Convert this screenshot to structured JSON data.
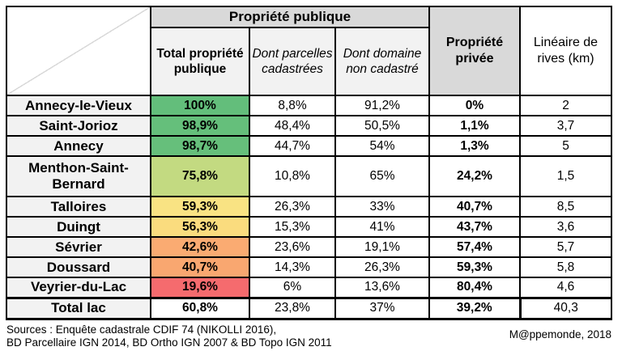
{
  "chart_data": {
    "type": "table",
    "header": {
      "group_public": "Propriété publique",
      "col_total_public": "Total propriété publique",
      "col_parcelles": "Dont parcelles cadastrées",
      "col_domaine": "Dont domaine non cadastré",
      "col_privee": "Propriété privée",
      "col_lineaire": "Linéaire de rives (km)"
    },
    "rows": [
      {
        "label": "Annecy-le-Vieux",
        "total_public": "100%",
        "parcelles": "8,8%",
        "domaine": "91,2%",
        "privee": "0%",
        "lineaire": "2",
        "cell_color": "#63BE7B"
      },
      {
        "label": "Saint-Jorioz",
        "total_public": "98,9%",
        "parcelles": "48,4%",
        "domaine": "50,5%",
        "privee": "1,1%",
        "lineaire": "3,7",
        "cell_color": "#65BF7B"
      },
      {
        "label": "Annecy",
        "total_public": "98,7%",
        "parcelles": "44,7%",
        "domaine": "54%",
        "privee": "1,3%",
        "lineaire": "5",
        "cell_color": "#66BF7B"
      },
      {
        "label": "Menthon-Saint-Bernard",
        "total_public": "75,8%",
        "parcelles": "10,8%",
        "domaine": "65%",
        "privee": "24,2%",
        "lineaire": "1,5",
        "cell_color": "#C3DA81"
      },
      {
        "label": "Talloires",
        "total_public": "59,3%",
        "parcelles": "26,3%",
        "domaine": "33%",
        "privee": "40,7%",
        "lineaire": "8,5",
        "cell_color": "#F9E383"
      },
      {
        "label": "Duingt",
        "total_public": "56,3%",
        "parcelles": "15,3%",
        "domaine": "41%",
        "privee": "43,7%",
        "lineaire": "3,6",
        "cell_color": "#FADC7E"
      },
      {
        "label": "Sévrier",
        "total_public": "42,6%",
        "parcelles": "23,6%",
        "domaine": "19,1%",
        "privee": "57,4%",
        "lineaire": "5,7",
        "cell_color": "#FAAB72"
      },
      {
        "label": "Doussard",
        "total_public": "40,7%",
        "parcelles": "14,3%",
        "domaine": "26,3%",
        "privee": "59,3%",
        "lineaire": "5,8",
        "cell_color": "#F9A770"
      },
      {
        "label": "Veyrier-du-Lac",
        "total_public": "19,6%",
        "parcelles": "6%",
        "domaine": "13,6%",
        "privee": "80,4%",
        "lineaire": "4,6",
        "cell_color": "#F56B6E"
      }
    ],
    "total": {
      "label": "Total lac",
      "total_public": "60,8%",
      "parcelles": "23,8%",
      "domaine": "37%",
      "privee": "39,2%",
      "lineaire": "40,3",
      "cell_color": "#FFFFFF"
    }
  },
  "footer": {
    "sources_line1": "Sources : Enquête cadastrale CDIF 74 (NIKOLLI 2016),",
    "sources_line2": "BD Parcellaire IGN 2014, BD Ortho IGN 2007 & BD Topo IGN 2011",
    "credit": "M@ppemonde, 2018"
  },
  "colors": {
    "group_header_bg": "#D9D9D9",
    "subheader_bg": "#F2F2F2",
    "label_column_bg": "#F2F2F2",
    "border": "#000000",
    "scale_green": "#63BE7B",
    "scale_yellow": "#F9E383",
    "scale_orange": "#FAAB72",
    "scale_red": "#F56B6E"
  }
}
